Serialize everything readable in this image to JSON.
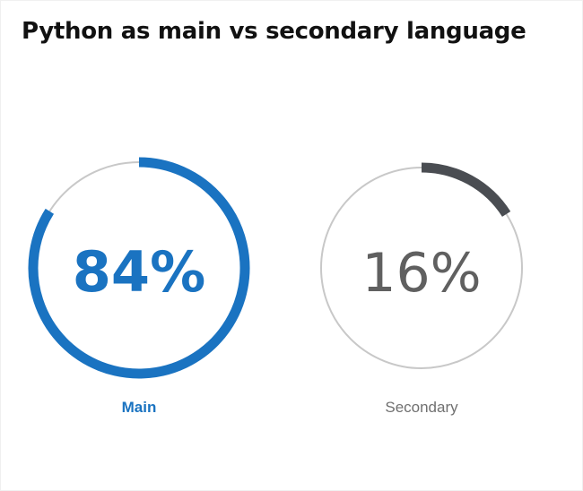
{
  "title": "Python as main vs secondary language",
  "chart_data": {
    "type": "donut",
    "title": "Python as main vs secondary language",
    "series": [
      {
        "name": "Main",
        "value": 84,
        "value_label": "84%",
        "color": "#1a73c1",
        "track_color": "#c8c8c8"
      },
      {
        "name": "Secondary",
        "value": 16,
        "value_label": "16%",
        "color": "#4a4d52",
        "track_color": "#c8c8c8"
      }
    ],
    "max": 100
  },
  "colors": {
    "main": "#1a73c1",
    "secondary_arc": "#4a4d52",
    "secondary_text": "#606060",
    "label_secondary": "#707070",
    "track": "#c8c8c8"
  }
}
